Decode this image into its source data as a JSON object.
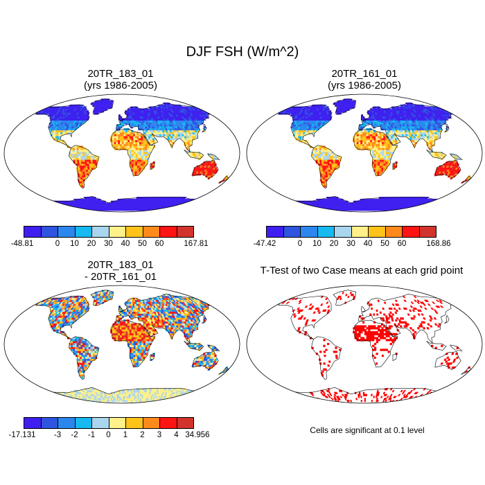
{
  "main_title": "DJF FSH (W/m^2)",
  "panels": [
    {
      "title1": "20TR_183_01",
      "title2": "(yrs 1986-2005)",
      "colorbar": {
        "colors": [
          "#3e1ff0",
          "#2f54e0",
          "#2b87ee",
          "#16b9f0",
          "#a9d6ee",
          "#fff08a",
          "#ffc31a",
          "#ff8a1c",
          "#ff1414",
          "#d2342c"
        ],
        "labels": [
          "-48.81",
          "0",
          "10",
          "20",
          "30",
          "40",
          "50",
          "60",
          "167.81"
        ]
      }
    },
    {
      "title1": "20TR_161_01",
      "title2": "(yrs 1986-2005)",
      "colorbar": {
        "colors": [
          "#3e1ff0",
          "#2f54e0",
          "#2b87ee",
          "#16b9f0",
          "#a9d6ee",
          "#fff08a",
          "#ffc31a",
          "#ff8a1c",
          "#ff1414",
          "#d2342c"
        ],
        "labels": [
          "-47.42",
          "0",
          "10",
          "20",
          "30",
          "40",
          "50",
          "60",
          "168.86"
        ]
      }
    },
    {
      "title1": "20TR_183_01",
      "title2": "- 20TR_161_01",
      "colorbar": {
        "colors": [
          "#3e1ff0",
          "#2f54e0",
          "#2b87ee",
          "#16b9f0",
          "#a9d6ee",
          "#fff08a",
          "#ffc31a",
          "#ff8a1c",
          "#ff1414",
          "#d2342c"
        ],
        "labels": [
          "-17.131",
          "-3",
          "-2",
          "-1",
          "0",
          "1",
          "2",
          "3",
          "4",
          "34.956"
        ]
      }
    },
    {
      "title1": "T-Test of two Case means at each grid point",
      "title2": "",
      "note": "Cells are significant at 0.1 level"
    }
  ]
}
